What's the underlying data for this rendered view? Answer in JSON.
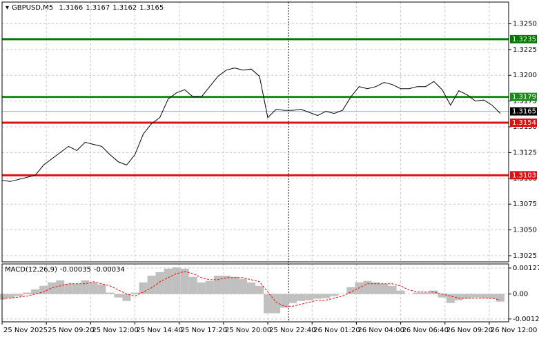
{
  "chart_data": [
    {
      "type": "line",
      "symbol": "GBPUSD,M5",
      "ohlc": [
        1.3166,
        1.3167,
        1.3162,
        1.3165
      ],
      "x": [
        0,
        3,
        6,
        9,
        12,
        15,
        18,
        21,
        24,
        27,
        30,
        33,
        36,
        39,
        42,
        45,
        48,
        51,
        54,
        57,
        60,
        63,
        66,
        69,
        72,
        75,
        78,
        81,
        84,
        87,
        90,
        93,
        96,
        99,
        102,
        105,
        108,
        111,
        114,
        117,
        120,
        123,
        126,
        129,
        132,
        135,
        138,
        141,
        144,
        147,
        150,
        153,
        156,
        159,
        162,
        165,
        168,
        171,
        174,
        177,
        180
      ],
      "series": [
        {
          "color": "#000000",
          "values": [
            1.3098,
            1.3097,
            1.3099,
            1.3101,
            1.3103,
            1.3113,
            1.3119,
            1.3125,
            1.3131,
            1.3127,
            1.3135,
            1.3133,
            1.3131,
            1.3123,
            1.3116,
            1.3113,
            1.3123,
            1.3143,
            1.3153,
            1.3159,
            1.3177,
            1.3183,
            1.3186,
            1.3179,
            1.3179,
            1.3189,
            1.3199,
            1.3205,
            1.3207,
            1.3205,
            1.3206,
            1.3199,
            1.3159,
            1.3167,
            1.3166,
            1.3166,
            1.3167,
            1.3164,
            1.3161,
            1.3165,
            1.3163,
            1.3166,
            1.3179,
            1.3189,
            1.3187,
            1.3189,
            1.3193,
            1.3191,
            1.3187,
            1.3187,
            1.3189,
            1.3189,
            1.3194,
            1.3186,
            1.3171,
            1.3185,
            1.3181,
            1.3175,
            1.3176,
            1.3171,
            1.3163
          ]
        }
      ],
      "levels": [
        {
          "value": 1.3235,
          "color": "#007800"
        },
        {
          "value": 1.3179,
          "color": "#1a8c1a"
        },
        {
          "value": 1.3154,
          "color": "#e01010"
        },
        {
          "value": 1.3103,
          "color": "#e01010"
        }
      ],
      "xlim": [
        0,
        183
      ],
      "ylim": [
        1.3019,
        1.3271
      ],
      "yticks": [
        {
          "value": 1.325,
          "label": "1.3250"
        },
        1.3225,
        {
          "value": 1.32,
          "label": "1.3200"
        },
        1.3175,
        {
          "value": 1.315,
          "label": "1.3150"
        },
        1.3125,
        {
          "value": 1.31,
          "label": "1.3100"
        },
        1.3075,
        {
          "value": 1.305,
          "label": "1.3050"
        },
        1.3025
      ],
      "xticks": [
        {
          "value": 0,
          "label": "25 Nov 2025"
        },
        {
          "value": 16,
          "label": "25 Nov 09:20"
        },
        {
          "value": 32,
          "label": "25 Nov 12:00"
        },
        {
          "value": 48,
          "label": "25 Nov 14:40"
        },
        {
          "value": 64,
          "label": "25 Nov 17:20"
        },
        {
          "value": 80,
          "label": "25 Nov 20:00"
        },
        {
          "value": 96,
          "label": "25 Nov 22:40"
        },
        {
          "value": 112,
          "label": "26 Nov 01:20"
        },
        {
          "value": 128,
          "label": "26 Nov 04:00"
        },
        {
          "value": 144,
          "label": "26 Nov 06:40"
        },
        {
          "value": 160,
          "label": "26 Nov 09:20"
        },
        {
          "value": 176,
          "label": "26 Nov 12:00"
        }
      ],
      "grid": true
    },
    {
      "type": "macd",
      "title": "MACD(12,26,9)",
      "readout": [
        -0.00035,
        -0.00034
      ],
      "series": [
        {
          "color": "#c0c0c0",
          "values": [
            -0.00027,
            -0.0002,
            -0.0001,
            7e-05,
            0.00023,
            0.0004,
            0.00057,
            0.00067,
            0.0005,
            0.0005,
            0.00067,
            0.00057,
            0.00047,
            7e-05,
            -0.00017,
            -0.00034,
            7e-05,
            0.00057,
            0.0009,
            0.00107,
            0.00124,
            0.0013,
            0.00124,
            0.00084,
            0.00057,
            0.00064,
            0.0009,
            0.0009,
            0.00084,
            0.00074,
            0.00057,
            0.0004,
            -0.00094,
            -0.00094,
            -0.00067,
            -0.00044,
            -0.00034,
            -0.0003,
            -0.00023,
            -0.0002,
            -0.0001,
            0,
            0.00034,
            0.00057,
            0.00064,
            0.00057,
            0.0005,
            0.0004,
            0.00017,
            0,
            7e-05,
            7e-05,
            0.00017,
            -0.00017,
            -0.00044,
            -0.0003,
            -0.00023,
            -0.00017,
            -0.0002,
            -0.00023,
            -0.00037
          ]
        },
        {
          "color": "#ff0000",
          "values": [
            -0.0002,
            -0.0002,
            -0.00015,
            -0.0001,
            0,
            0.0001,
            0.0003,
            0.0004,
            0.0005,
            0.0005,
            0.0005,
            0.0006,
            0.0005,
            0.0004,
            0.0002,
            0,
            -0.0001,
            0.0001,
            0.0003,
            0.0006,
            0.0008,
            0.001,
            0.0011,
            0.001,
            0.0008,
            0.0007,
            0.0007,
            0.0008,
            0.0008,
            0.0008,
            0.0007,
            0.0006,
            0.0001,
            -0.0004,
            -0.0006,
            -0.0006,
            -0.0005,
            -0.0004,
            -0.0003,
            -0.0003,
            -0.0002,
            -0.0001,
            0.0001,
            0.0003,
            0.0005,
            0.0005,
            0.0005,
            0.0005,
            0.0004,
            0.0002,
            0.0001,
            0.0001,
            0.0001,
            0,
            -0.0001,
            -0.0002,
            -0.0002,
            -0.0002,
            -0.0002,
            -0.0002,
            -0.0003
          ]
        }
      ],
      "ylim": [
        -0.00136,
        0.00147
      ],
      "yticks": [
        0.00127,
        {
          "value": 0,
          "label": "0.00"
        },
        -0.00122
      ]
    }
  ]
}
